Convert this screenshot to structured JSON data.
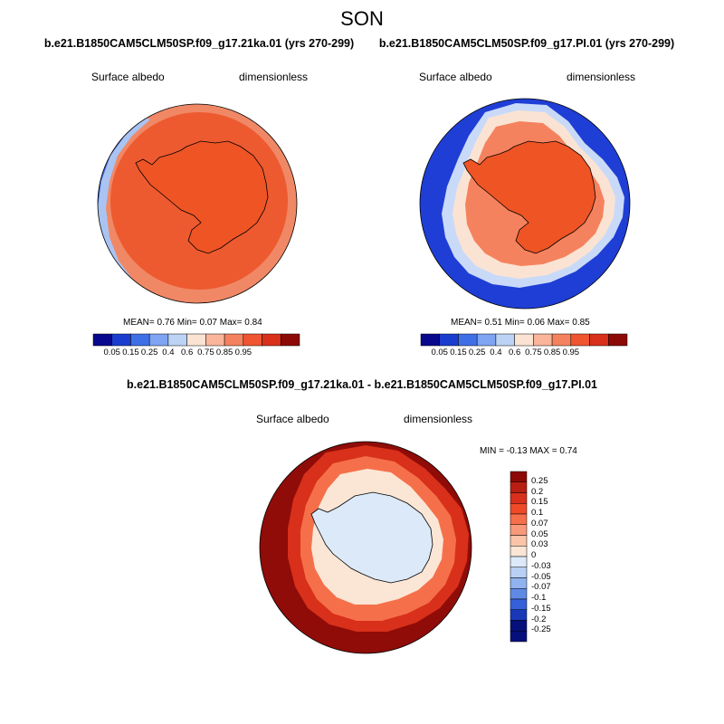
{
  "season": "SON",
  "panels": [
    {
      "id": "left",
      "title": "b.e21.B1850CAM5CLM50SP.f09_g17.21ka.01 (yrs 270-299)",
      "variable": "Surface albedo",
      "units": "dimensionless",
      "mean_label": "MEAN=",
      "mean": "0.76",
      "min_label": "Min=",
      "min": "0.07",
      "max_label": "Max=",
      "max": "0.84",
      "colorbar_ticks": [
        "0.05",
        "0.15",
        "0.25",
        "0.4",
        "0.6",
        "0.75",
        "0.85",
        "0.95"
      ]
    },
    {
      "id": "right",
      "title": "b.e21.B1850CAM5CLM50SP.f09_g17.PI.01 (yrs 270-299)",
      "variable": "Surface albedo",
      "units": "dimensionless",
      "mean_label": "MEAN=",
      "mean": "0.51",
      "min_label": "Min=",
      "min": "0.06",
      "max_label": "Max=",
      "max": "0.85",
      "colorbar_ticks": [
        "0.05",
        "0.15",
        "0.25",
        "0.4",
        "0.6",
        "0.75",
        "0.85",
        "0.95"
      ]
    }
  ],
  "diff": {
    "title": "b.e21.B1850CAM5CLM50SP.f09_g17.21ka.01 - b.e21.B1850CAM5CLM50SP.f09_g17.PI.01",
    "variable": "Surface albedo",
    "units": "dimensionless",
    "min_label": "MIN =",
    "min": "-0.13",
    "max_label": "MAX =",
    "max": "0.74",
    "colorbar_ticks": [
      "0.25",
      "0.2",
      "0.15",
      "0.1",
      "0.07",
      "0.05",
      "0.03",
      "0",
      "-0.03",
      "-0.05",
      "-0.07",
      "-0.1",
      "-0.15",
      "-0.2",
      "-0.25"
    ]
  },
  "colors": {
    "abs_scale": [
      "#08088c",
      "#1a3dcf",
      "#3e6fe6",
      "#7ea4f2",
      "#bcd3f6",
      "#fbe3d4",
      "#f9b49a",
      "#f5825e",
      "#ef5530",
      "#d8301a",
      "#8c0a05"
    ],
    "diff_scale": [
      "#8c0a05",
      "#b81e12",
      "#d8301a",
      "#ef4a26",
      "#f5704a",
      "#f89a7a",
      "#fbc4a8",
      "#fbe6d6",
      "#dce9f8",
      "#b8d0f4",
      "#90b2ee",
      "#5f8ae4",
      "#3460d8",
      "#1838b8",
      "#06107a"
    ],
    "ice_orange": "#ef5424",
    "band_orange": "#f08060",
    "ocean_blue": "#1f3ed6",
    "diff_red": "#8f0c08",
    "diff_ice": "#dce9f8"
  },
  "chart_data": [
    {
      "type": "heatmap",
      "title": "b.e21.B1850CAM5CLM50SP.f09_g17.21ka.01 (yrs 270-299)",
      "variable": "Surface albedo",
      "units": "dimensionless",
      "projection": "south-polar-stereographic",
      "season": "SON",
      "stats": {
        "mean": 0.76,
        "min": 0.07,
        "max": 0.84
      },
      "levels": [
        0.05,
        0.15,
        0.25,
        0.4,
        0.6,
        0.75,
        0.85,
        0.95
      ]
    },
    {
      "type": "heatmap",
      "title": "b.e21.B1850CAM5CLM50SP.f09_g17.PI.01 (yrs 270-299)",
      "variable": "Surface albedo",
      "units": "dimensionless",
      "projection": "south-polar-stereographic",
      "season": "SON",
      "stats": {
        "mean": 0.51,
        "min": 0.06,
        "max": 0.85
      },
      "levels": [
        0.05,
        0.15,
        0.25,
        0.4,
        0.6,
        0.75,
        0.85,
        0.95
      ]
    },
    {
      "type": "heatmap",
      "title": "b.e21.B1850CAM5CLM50SP.f09_g17.21ka.01 - b.e21.B1850CAM5CLM50SP.f09_g17.PI.01",
      "variable": "Surface albedo",
      "units": "dimensionless",
      "projection": "south-polar-stereographic",
      "season": "SON",
      "stats": {
        "min": -0.13,
        "max": 0.74
      },
      "levels": [
        -0.25,
        -0.2,
        -0.15,
        -0.1,
        -0.07,
        -0.05,
        -0.03,
        0,
        0.03,
        0.05,
        0.07,
        0.1,
        0.15,
        0.2,
        0.25
      ]
    }
  ]
}
